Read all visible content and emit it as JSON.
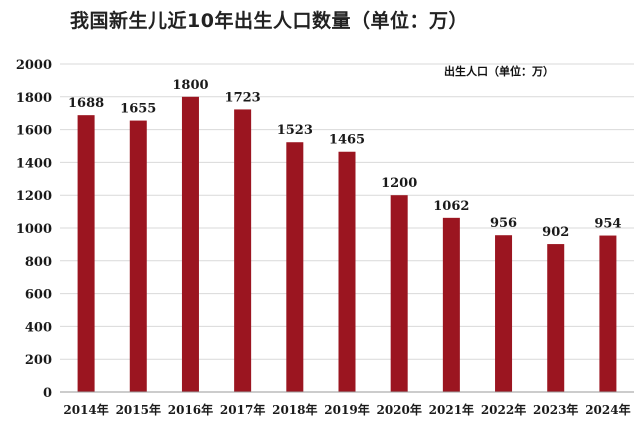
{
  "chart_data": {
    "type": "bar",
    "title": "我国新生儿近10年出生人口数量（单位：万）",
    "legend_label": "出生人口（单位：万）",
    "categories": [
      "2014年",
      "2015年",
      "2016年",
      "2017年",
      "2018年",
      "2019年",
      "2020年",
      "2021年",
      "2022年",
      "2023年",
      "2024年"
    ],
    "values": [
      1688,
      1655,
      1800,
      1723,
      1523,
      1465,
      1200,
      1062,
      956,
      902,
      954
    ],
    "ylim": [
      0,
      2000
    ],
    "yticks": [
      "0",
      "200",
      "400",
      "600",
      "800",
      "1000",
      "1200",
      "1400",
      "1600",
      "1800",
      "2000"
    ],
    "grid": true,
    "bar_color": "#9b1520"
  }
}
